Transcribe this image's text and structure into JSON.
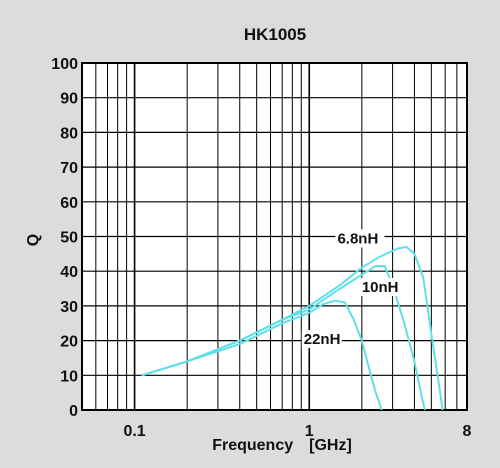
{
  "chart_data": {
    "type": "line",
    "title": "HK1005",
    "xlabel": "Frequency　[GHz]",
    "ylabel": "Q",
    "x_scale": "log",
    "xlim": [
      0.05,
      8
    ],
    "ylim": [
      0,
      100
    ],
    "x_ticks": [
      {
        "value": 0.1,
        "label": "0.1"
      },
      {
        "value": 1,
        "label": "1"
      },
      {
        "value": 8,
        "label": "8"
      }
    ],
    "y_ticks": [
      0,
      10,
      20,
      30,
      40,
      50,
      60,
      70,
      80,
      90,
      100
    ],
    "grid": true,
    "series_color": "#5fe0e8",
    "series": [
      {
        "name": "6.8nH",
        "points": [
          [
            0.11,
            10
          ],
          [
            0.2,
            14
          ],
          [
            0.4,
            20
          ],
          [
            0.7,
            26
          ],
          [
            1.0,
            30
          ],
          [
            1.5,
            36
          ],
          [
            2.0,
            41
          ],
          [
            2.5,
            44
          ],
          [
            3.2,
            46.5
          ],
          [
            3.6,
            47
          ],
          [
            4.0,
            45
          ],
          [
            4.5,
            38
          ],
          [
            5.0,
            22
          ],
          [
            5.5,
            8
          ],
          [
            5.8,
            0
          ]
        ]
      },
      {
        "name": "10nH",
        "points": [
          [
            0.11,
            10
          ],
          [
            0.2,
            14
          ],
          [
            0.4,
            20
          ],
          [
            0.7,
            26
          ],
          [
            1.0,
            29
          ],
          [
            1.5,
            35
          ],
          [
            2.0,
            39
          ],
          [
            2.4,
            41.5
          ],
          [
            2.7,
            41.5
          ],
          [
            3.0,
            36
          ],
          [
            3.5,
            25
          ],
          [
            4.0,
            14
          ],
          [
            4.4,
            4
          ],
          [
            4.6,
            0
          ]
        ]
      },
      {
        "name": "22nH",
        "points": [
          [
            0.11,
            10
          ],
          [
            0.2,
            14
          ],
          [
            0.4,
            19
          ],
          [
            0.7,
            25
          ],
          [
            1.0,
            28
          ],
          [
            1.2,
            30.5
          ],
          [
            1.4,
            31.5
          ],
          [
            1.6,
            31
          ],
          [
            1.8,
            26
          ],
          [
            2.0,
            20
          ],
          [
            2.2,
            12
          ],
          [
            2.4,
            5
          ],
          [
            2.6,
            0
          ]
        ]
      }
    ],
    "annotations": [
      {
        "text": "6.8nH",
        "x": 1.45,
        "y": 48
      },
      {
        "text": "10nH",
        "x": 2.0,
        "y": 34
      },
      {
        "text": "22nH",
        "x": 0.93,
        "y": 19
      }
    ]
  }
}
